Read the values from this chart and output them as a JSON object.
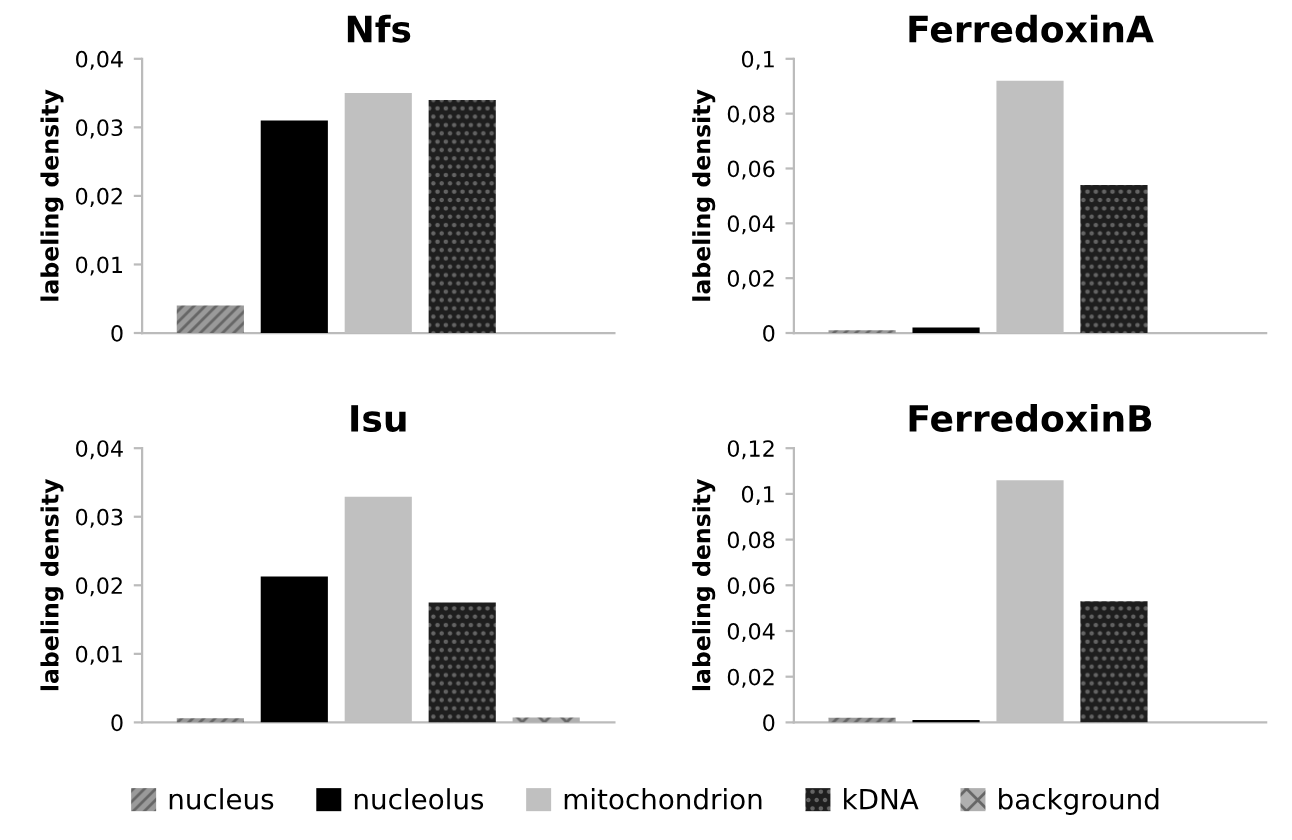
{
  "chart_data": [
    {
      "type": "bar",
      "title": "Nfs",
      "ylabel": "labeling density",
      "categories": [
        null
      ],
      "legend": "bottom",
      "grid": false,
      "series": [
        {
          "name": "nucleus",
          "color": "#9a9a9a",
          "values": [
            0.004
          ]
        },
        {
          "name": "nucleolus",
          "color": "#000000",
          "values": [
            0.031
          ]
        },
        {
          "name": "mitochondrion",
          "color": "#c0c0c0",
          "values": [
            0.035
          ]
        },
        {
          "name": "kDNA",
          "color": "#1e1e1e",
          "values": [
            0.034
          ]
        },
        {
          "name": "background",
          "color": "#b0b0b0",
          "values": [
            null
          ]
        }
      ],
      "ylim": [
        0,
        0.04
      ],
      "yticks": [
        {
          "value": 0,
          "label": "0"
        },
        {
          "value": 0.01,
          "label": "0,01"
        },
        {
          "value": 0.02,
          "label": "0,02"
        },
        {
          "value": 0.03,
          "label": "0,03"
        },
        {
          "value": 0.04,
          "label": "0,04"
        }
      ]
    },
    {
      "type": "bar",
      "title": "FerredoxinA",
      "ylabel": "labeling density",
      "categories": [
        null
      ],
      "grid": false,
      "series": [
        {
          "color": "#9a9a9a",
          "values": [
            0.001
          ]
        },
        {
          "color": "#000000",
          "values": [
            0.002
          ]
        },
        {
          "color": "#c0c0c0",
          "values": [
            0.092
          ]
        },
        {
          "color": "#1e1e1e",
          "values": [
            0.054
          ]
        },
        {
          "color": "#b0b0b0",
          "values": [
            null
          ]
        }
      ],
      "ylim": [
        0,
        0.1
      ],
      "yticks": [
        {
          "value": 0,
          "label": "0"
        },
        {
          "value": 0.02,
          "label": "0,02"
        },
        {
          "value": 0.04,
          "label": "0,04"
        },
        {
          "value": 0.06,
          "label": "0,06"
        },
        {
          "value": 0.08,
          "label": "0,08"
        },
        {
          "value": 0.1,
          "label": "0,1"
        }
      ]
    },
    {
      "type": "bar",
      "title": "Isu",
      "ylabel": "labeling density",
      "categories": [
        null
      ],
      "grid": false,
      "series": [
        {
          "color": "#9a9a9a",
          "values": [
            0.0006
          ]
        },
        {
          "color": "#000000",
          "values": [
            0.0213
          ]
        },
        {
          "color": "#c0c0c0",
          "values": [
            0.0329
          ]
        },
        {
          "color": "#1e1e1e",
          "values": [
            0.0175
          ]
        },
        {
          "color": "#b0b0b0",
          "values": [
            0.0007
          ]
        }
      ],
      "ylim": [
        0,
        0.04
      ],
      "yticks": [
        {
          "value": 0,
          "label": "0"
        },
        {
          "value": 0.01,
          "label": "0,01"
        },
        {
          "value": 0.02,
          "label": "0,02"
        },
        {
          "value": 0.03,
          "label": "0,03"
        },
        {
          "value": 0.04,
          "label": "0,04"
        }
      ]
    },
    {
      "type": "bar",
      "title": "FerredoxinB",
      "ylabel": "labeling density",
      "categories": [
        null
      ],
      "grid": false,
      "series": [
        {
          "color": "#9a9a9a",
          "values": [
            0.002
          ]
        },
        {
          "color": "#000000",
          "values": [
            0.001
          ]
        },
        {
          "color": "#c0c0c0",
          "values": [
            0.106
          ]
        },
        {
          "color": "#1e1e1e",
          "values": [
            0.053
          ]
        },
        {
          "color": "#b0b0b0",
          "values": [
            null
          ]
        }
      ],
      "ylim": [
        0,
        0.12
      ],
      "yticks": [
        {
          "value": 0,
          "label": "0"
        },
        {
          "value": 0.02,
          "label": "0,02"
        },
        {
          "value": 0.04,
          "label": "0,04"
        },
        {
          "value": 0.06,
          "label": "0,06"
        },
        {
          "value": 0.08,
          "label": "0,08"
        },
        {
          "value": 0.1,
          "label": "0,1"
        },
        {
          "value": 0.12,
          "label": "0,12"
        }
      ]
    }
  ]
}
